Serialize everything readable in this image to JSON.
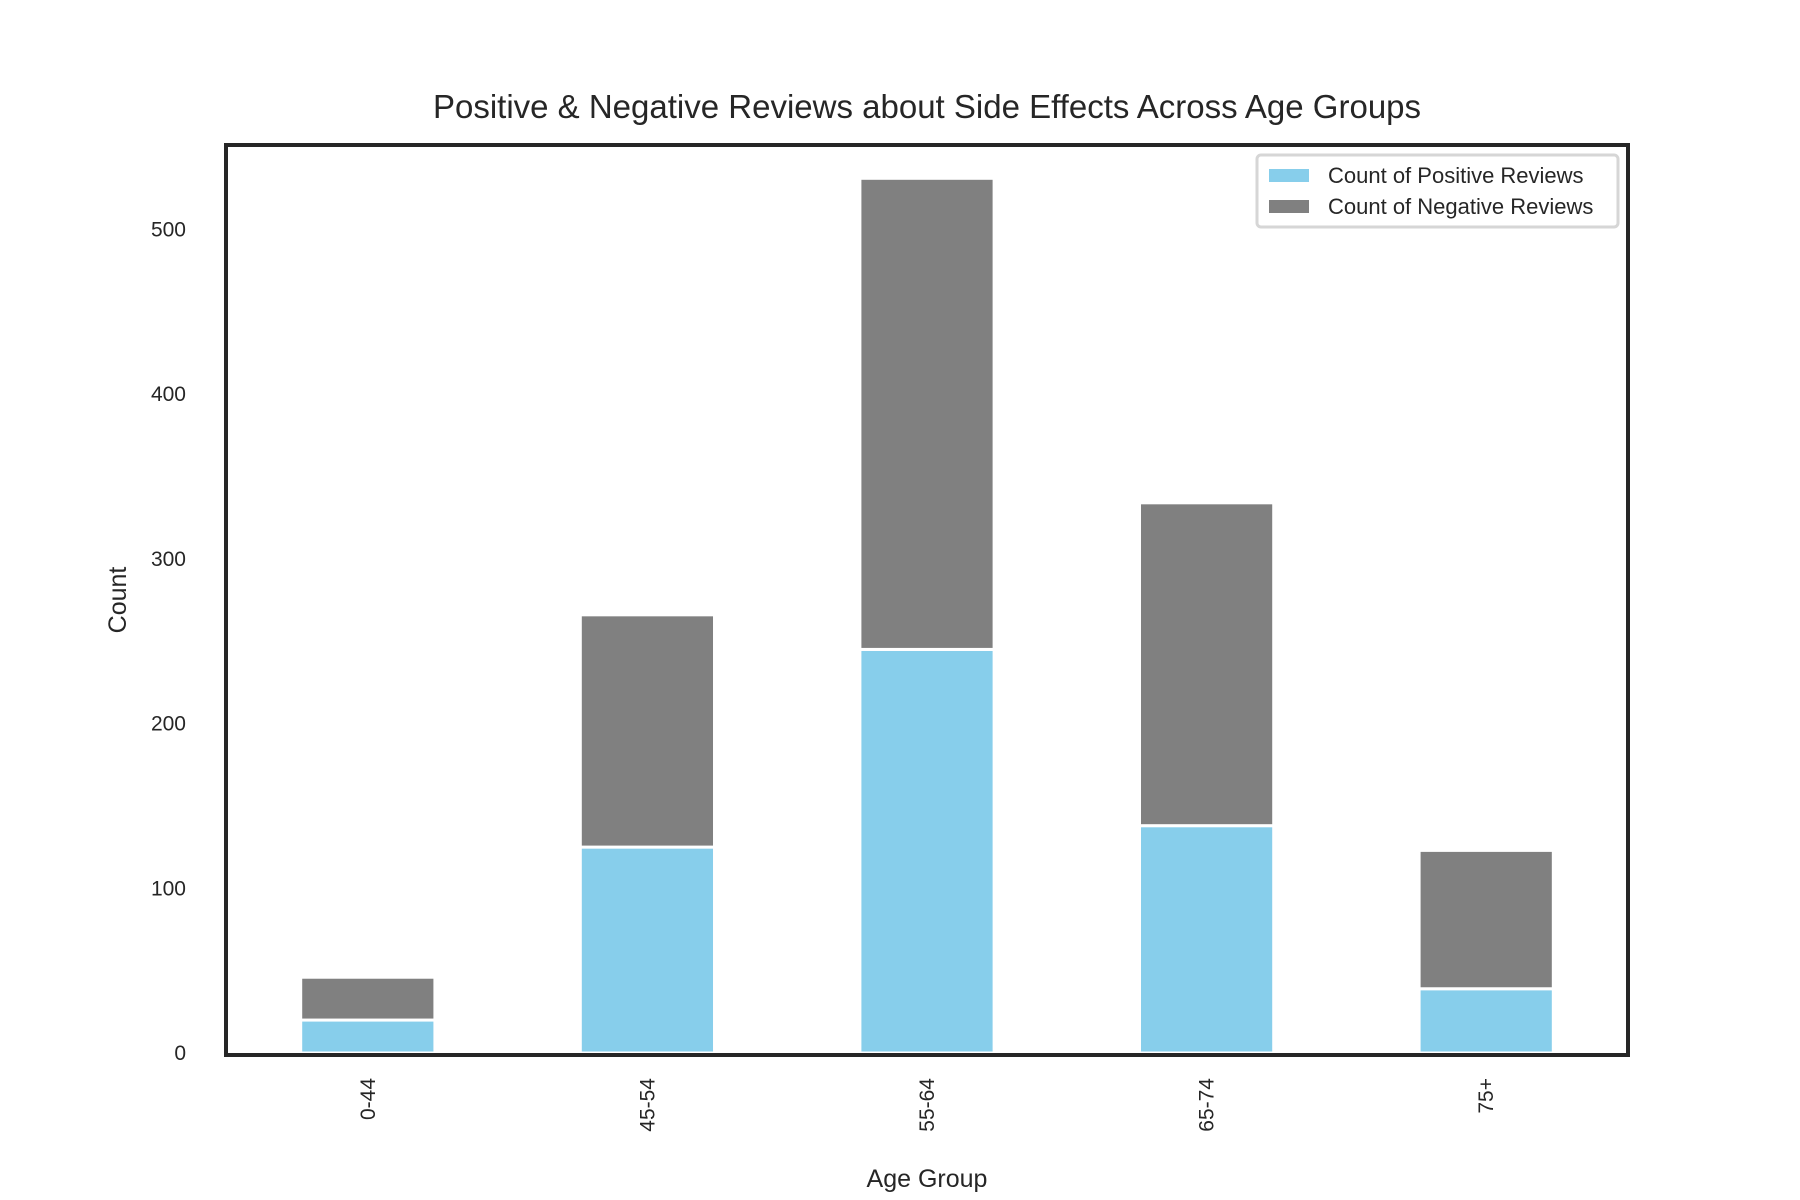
{
  "chart_data": {
    "type": "bar",
    "stacked": true,
    "title": "Positive & Negative Reviews about Side Effects Across Age Groups",
    "xlabel": "Age Group",
    "ylabel": "Count",
    "categories": [
      "0-44",
      "45-54",
      "55-64",
      "65-74",
      "75+"
    ],
    "series": [
      {
        "name": "Count of Positive Reviews",
        "color": "#87CEEB",
        "values": [
          20,
          125,
          245,
          138,
          39
        ]
      },
      {
        "name": "Count of Negative Reviews",
        "color": "#808080",
        "values": [
          26,
          141,
          286,
          196,
          84
        ]
      }
    ],
    "ylim": [
      0,
      550
    ],
    "yticks": [
      0,
      100,
      200,
      300,
      400,
      500
    ],
    "grid": false,
    "legend_position": "top-right",
    "xtick_rotation": 90
  }
}
